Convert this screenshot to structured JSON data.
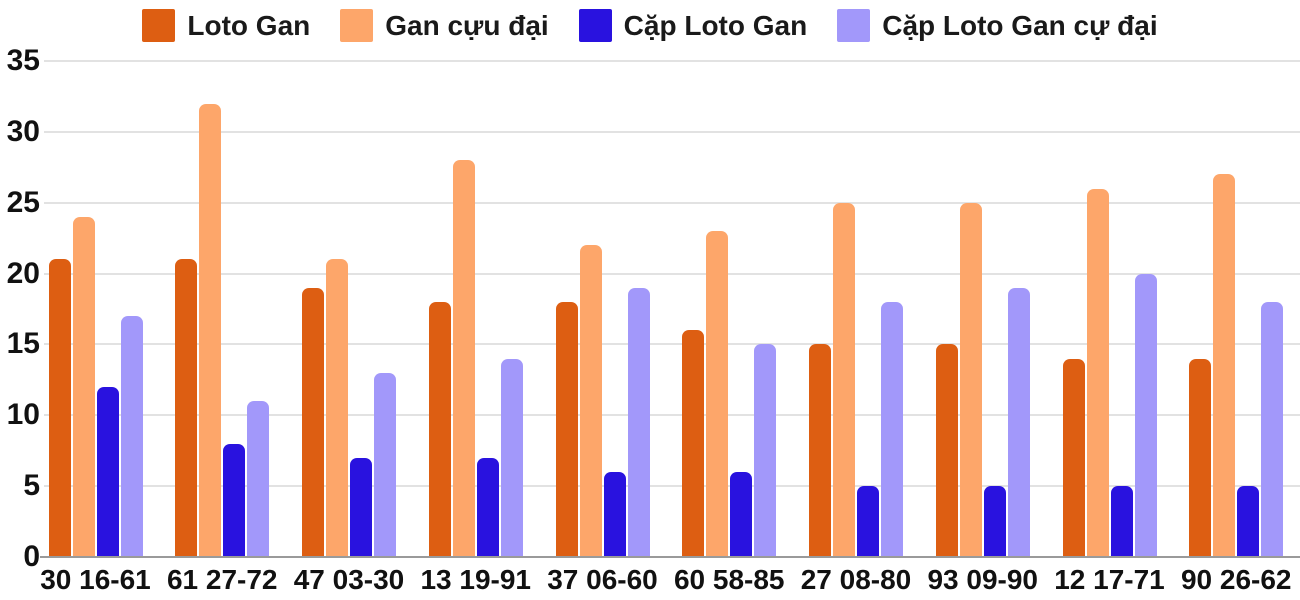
{
  "legend": [
    {
      "label": "Loto Gan",
      "color": "#DD5E12",
      "icon": "swatch-dark-orange"
    },
    {
      "label": "Gan cựu đại",
      "color": "#FDA66A",
      "icon": "swatch-light-orange"
    },
    {
      "label": "Cặp Loto Gan",
      "color": "#2912DF",
      "icon": "swatch-blue"
    },
    {
      "label": "Cặp Loto Gan cự đại",
      "color": "#A298FA",
      "icon": "swatch-purple"
    }
  ],
  "chart_data": {
    "type": "bar",
    "title": "",
    "xlabel": "",
    "ylabel": "",
    "categories": [
      "30 16-61",
      "61 27-72",
      "47 03-30",
      "13 19-91",
      "37 06-60",
      "60 58-85",
      "27 08-80",
      "93 09-90",
      "12 17-71",
      "90 26-62"
    ],
    "series": [
      {
        "name": "Loto Gan",
        "color": "#DD5E12",
        "values": [
          21,
          21,
          19,
          18,
          18,
          16,
          15,
          15,
          14,
          14
        ]
      },
      {
        "name": "Gan cựu đại",
        "color": "#FDA66A",
        "values": [
          24,
          32,
          21,
          28,
          22,
          23,
          25,
          25,
          26,
          27
        ]
      },
      {
        "name": "Cặp Loto Gan",
        "color": "#2912DF",
        "values": [
          12,
          8,
          7,
          7,
          6,
          6,
          5,
          5,
          5,
          5
        ]
      },
      {
        "name": "Cặp Loto Gan cự đại",
        "color": "#A298FA",
        "values": [
          17,
          11,
          13,
          14,
          19,
          15,
          18,
          19,
          20,
          18
        ]
      }
    ],
    "ylim": [
      0,
      35
    ],
    "yticks": [
      0,
      5,
      10,
      15,
      20,
      25,
      30,
      35
    ],
    "grid": true,
    "legend_position": "top"
  },
  "colors": {
    "background": "#FFFFFF",
    "gridline": "#E2E2E2",
    "axis_line": "#9A9A9A",
    "text": "#111111"
  }
}
